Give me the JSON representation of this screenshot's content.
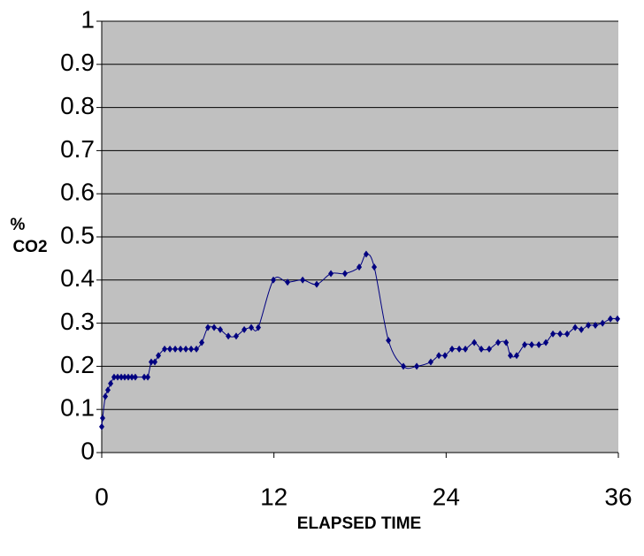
{
  "chart_data": {
    "type": "line",
    "xlabel": "ELAPSED TIME",
    "ylabel_lines": [
      "%",
      "CO2"
    ],
    "xlim": [
      0,
      36
    ],
    "xticks": [
      0,
      12,
      24,
      36
    ],
    "ylim": [
      0,
      1
    ],
    "yticks": [
      0,
      0.1,
      0.2,
      0.3,
      0.4,
      0.5,
      0.6,
      0.7,
      0.8,
      0.9,
      1
    ],
    "grid": true,
    "series": [
      {
        "color": "#000080",
        "x": [
          0,
          0.06,
          0.25,
          0.43,
          0.62,
          0.86,
          1.11,
          1.36,
          1.6,
          1.85,
          2.1,
          2.34,
          2.96,
          3.21,
          3.45,
          3.7,
          3.95,
          4.38,
          4.75,
          5.12,
          5.49,
          5.86,
          6.23,
          6.6,
          6.97,
          7.4,
          7.83,
          8.26,
          8.82,
          9.37,
          9.93,
          10.42,
          10.91,
          11.96,
          12.95,
          14.0,
          14.98,
          15.97,
          16.95,
          17.94,
          18.43,
          18.99,
          19.98,
          21.02,
          21.95,
          22.93,
          23.49,
          23.92,
          24.41,
          24.91,
          25.34,
          25.96,
          26.45,
          27.0,
          27.62,
          28.18,
          28.48,
          28.91,
          29.47,
          29.96,
          30.46,
          30.95,
          31.44,
          31.94,
          32.43,
          32.99,
          33.42,
          33.91,
          34.4,
          34.9,
          35.45,
          35.94
        ],
        "values": [
          0.06,
          0.08,
          0.13,
          0.145,
          0.16,
          0.175,
          0.175,
          0.175,
          0.175,
          0.175,
          0.175,
          0.175,
          0.175,
          0.175,
          0.21,
          0.21,
          0.225,
          0.24,
          0.24,
          0.24,
          0.24,
          0.24,
          0.24,
          0.24,
          0.255,
          0.29,
          0.29,
          0.285,
          0.27,
          0.27,
          0.285,
          0.29,
          0.29,
          0.4,
          0.395,
          0.4,
          0.39,
          0.415,
          0.415,
          0.43,
          0.46,
          0.43,
          0.26,
          0.2,
          0.2,
          0.21,
          0.225,
          0.225,
          0.24,
          0.24,
          0.24,
          0.255,
          0.24,
          0.24,
          0.255,
          0.255,
          0.225,
          0.225,
          0.25,
          0.25,
          0.25,
          0.255,
          0.275,
          0.275,
          0.275,
          0.29,
          0.285,
          0.295,
          0.295,
          0.3,
          0.31,
          0.31
        ]
      }
    ]
  }
}
